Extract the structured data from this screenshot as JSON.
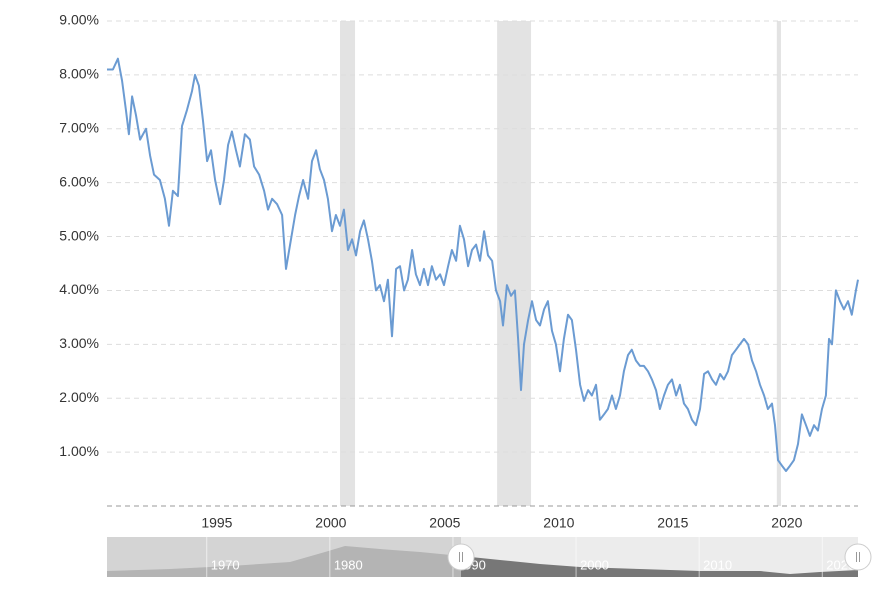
{
  "chart_data": {
    "type": "line",
    "color": "#6b9bd2",
    "grid": true,
    "xlim": [
      1990.18,
      2023.12
    ],
    "ylim": [
      0,
      9
    ],
    "xticks": [
      1995,
      2000,
      2005,
      2010,
      2015,
      2020
    ],
    "yticks": [
      {
        "value": 1,
        "label": "1.00%"
      },
      {
        "value": 2,
        "label": "2.00%"
      },
      {
        "value": 3,
        "label": "3.00%"
      },
      {
        "value": 4,
        "label": "4.00%"
      },
      {
        "value": 5,
        "label": "5.00%"
      },
      {
        "value": 6,
        "label": "6.00%"
      },
      {
        "value": 7,
        "label": "7.00%"
      },
      {
        "value": 8,
        "label": "8.00%"
      },
      {
        "value": 9,
        "label": "9.00%"
      }
    ],
    "recessions": [
      [
        2000.4,
        2001.06
      ],
      [
        2007.29,
        2008.78
      ],
      [
        2019.56,
        2019.74
      ]
    ],
    "x": [
      1990.18,
      1990.44,
      1990.66,
      1990.84,
      1991.01,
      1991.14,
      1991.28,
      1991.45,
      1991.63,
      1991.89,
      1992.07,
      1992.24,
      1992.5,
      1992.72,
      1992.9,
      1993.07,
      1993.29,
      1993.47,
      1993.69,
      1993.91,
      1994.04,
      1994.21,
      1994.39,
      1994.57,
      1994.74,
      1994.92,
      1995.14,
      1995.31,
      1995.49,
      1995.66,
      1995.84,
      1996.01,
      1996.23,
      1996.45,
      1996.63,
      1996.85,
      1997.07,
      1997.24,
      1997.42,
      1997.64,
      1997.86,
      1998.03,
      1998.21,
      1998.43,
      1998.6,
      1998.78,
      1999.0,
      1999.17,
      1999.35,
      1999.52,
      1999.7,
      1999.87,
      2000.05,
      2000.22,
      2000.4,
      2000.57,
      2000.75,
      2000.93,
      2001.1,
      2001.28,
      2001.45,
      2001.63,
      2001.8,
      2001.98,
      2002.15,
      2002.33,
      2002.5,
      2002.68,
      2002.86,
      2003.03,
      2003.21,
      2003.38,
      2003.56,
      2003.73,
      2003.91,
      2004.08,
      2004.26,
      2004.43,
      2004.61,
      2004.79,
      2004.96,
      2005.14,
      2005.31,
      2005.49,
      2005.66,
      2005.84,
      2006.02,
      2006.19,
      2006.37,
      2006.54,
      2006.72,
      2006.89,
      2007.07,
      2007.24,
      2007.42,
      2007.55,
      2007.72,
      2007.9,
      2008.07,
      2008.21,
      2008.34,
      2008.47,
      2008.65,
      2008.82,
      2009.0,
      2009.17,
      2009.35,
      2009.52,
      2009.7,
      2009.87,
      2010.05,
      2010.22,
      2010.4,
      2010.57,
      2010.75,
      2010.93,
      2011.1,
      2011.28,
      2011.45,
      2011.63,
      2011.8,
      2011.98,
      2012.15,
      2012.33,
      2012.5,
      2012.68,
      2012.85,
      2013.03,
      2013.2,
      2013.38,
      2013.56,
      2013.73,
      2013.91,
      2014.08,
      2014.26,
      2014.43,
      2014.61,
      2014.78,
      2014.96,
      2015.14,
      2015.31,
      2015.49,
      2015.66,
      2015.84,
      2016.01,
      2016.19,
      2016.37,
      2016.54,
      2016.72,
      2016.89,
      2017.07,
      2017.24,
      2017.42,
      2017.59,
      2017.77,
      2017.94,
      2018.12,
      2018.3,
      2018.47,
      2018.65,
      2018.82,
      2019.0,
      2019.17,
      2019.35,
      2019.48,
      2019.61,
      2019.78,
      2019.96,
      2020.14,
      2020.31,
      2020.49,
      2020.66,
      2020.84,
      2021.01,
      2021.19,
      2021.36,
      2021.54,
      2021.71,
      2021.85,
      2021.98,
      2022.15,
      2022.33,
      2022.5,
      2022.68,
      2022.85,
      2023.03,
      2023.12
    ],
    "values": [
      8.1,
      8.1,
      8.3,
      7.9,
      7.35,
      6.9,
      7.6,
      7.25,
      6.8,
      7.0,
      6.5,
      6.15,
      6.05,
      5.7,
      5.2,
      5.85,
      5.75,
      7.05,
      7.35,
      7.7,
      8.0,
      7.8,
      7.15,
      6.4,
      6.6,
      6.05,
      5.6,
      6.05,
      6.7,
      6.95,
      6.6,
      6.3,
      6.9,
      6.8,
      6.3,
      6.15,
      5.85,
      5.5,
      5.7,
      5.6,
      5.4,
      4.4,
      4.85,
      5.4,
      5.75,
      6.05,
      5.7,
      6.4,
      6.6,
      6.25,
      6.05,
      5.7,
      5.1,
      5.4,
      5.2,
      5.5,
      4.75,
      4.95,
      4.65,
      5.1,
      5.3,
      4.95,
      4.55,
      4.0,
      4.1,
      3.8,
      4.2,
      3.15,
      4.4,
      4.45,
      4.0,
      4.2,
      4.75,
      4.3,
      4.1,
      4.4,
      4.1,
      4.45,
      4.2,
      4.3,
      4.1,
      4.45,
      4.75,
      4.55,
      5.2,
      4.95,
      4.45,
      4.75,
      4.85,
      4.55,
      5.1,
      4.65,
      4.55,
      4.0,
      3.8,
      3.35,
      4.1,
      3.9,
      4.0,
      3.1,
      2.15,
      3.0,
      3.45,
      3.8,
      3.45,
      3.35,
      3.65,
      3.8,
      3.25,
      3.0,
      2.5,
      3.1,
      3.55,
      3.45,
      2.9,
      2.25,
      1.95,
      2.15,
      2.05,
      2.25,
      1.6,
      1.7,
      1.8,
      2.05,
      1.8,
      2.05,
      2.5,
      2.8,
      2.9,
      2.7,
      2.6,
      2.6,
      2.5,
      2.35,
      2.15,
      1.8,
      2.05,
      2.25,
      2.35,
      2.05,
      2.25,
      1.9,
      1.8,
      1.6,
      1.5,
      1.8,
      2.45,
      2.5,
      2.35,
      2.25,
      2.45,
      2.35,
      2.5,
      2.8,
      2.9,
      3.0,
      3.1,
      3.0,
      2.7,
      2.5,
      2.25,
      2.05,
      1.8,
      1.9,
      1.5,
      0.85,
      0.75,
      0.65,
      0.75,
      0.85,
      1.15,
      1.7,
      1.5,
      1.3,
      1.5,
      1.4,
      1.8,
      2.05,
      3.1,
      3.0,
      4.0,
      3.8,
      3.65,
      3.8,
      3.55,
      4.0,
      4.2
    ],
    "navigator": {
      "xlim": [
        1961.9,
        2022.9
      ],
      "xticks": [
        1970,
        1980,
        1990,
        2000,
        2010,
        2020
      ]
    }
  }
}
